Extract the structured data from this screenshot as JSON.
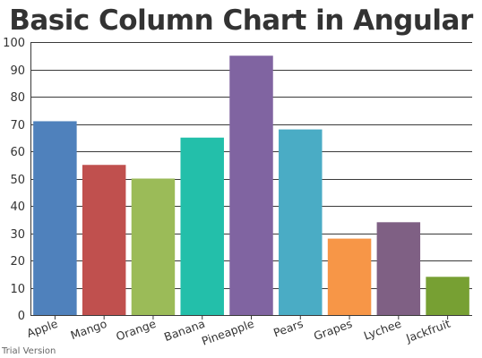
{
  "chart_data": {
    "type": "bar",
    "title": "Basic Column Chart in Angular",
    "xlabel": "",
    "ylabel": "",
    "categories": [
      "Apple",
      "Mango",
      "Orange",
      "Banana",
      "Pineapple",
      "Pears",
      "Grapes",
      "Lychee",
      "Jackfruit"
    ],
    "values": [
      71,
      55,
      50,
      65,
      95,
      68,
      28,
      34,
      14
    ],
    "colors": [
      "#4f81bc",
      "#c0504e",
      "#9bbb58",
      "#23bfaa",
      "#8064a1",
      "#4aacc5",
      "#f79647",
      "#7f6084",
      "#77a033"
    ],
    "ylim": [
      0,
      100
    ],
    "y_ticks": [
      0,
      10,
      20,
      30,
      40,
      50,
      60,
      70,
      80,
      90,
      100
    ],
    "grid": true,
    "legend": "none"
  },
  "watermark": "Trial Version"
}
